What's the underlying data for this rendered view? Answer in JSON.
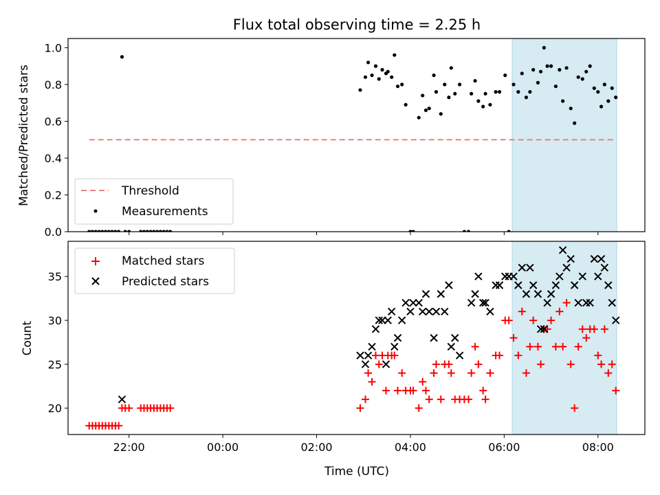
{
  "chart_data": [
    {
      "type": "scatter",
      "title": "Flux total observing time = 2.25 h",
      "ylabel": "Matched/Predicted stars",
      "xlabel": "",
      "xlim": [
        -3.3,
        9.0
      ],
      "ylim": [
        0.0,
        1.05
      ],
      "yticks": [
        "0.0",
        "0.2",
        "0.4",
        "0.6",
        "0.8",
        "1.0"
      ],
      "shaded_interval": [
        6.17,
        8.4
      ],
      "shade_color": "#add8e6",
      "grid": false,
      "legend_position": "lower-left",
      "threshold": {
        "name": "Threshold",
        "value": 0.5,
        "x_range": [
          -2.85,
          8.35
        ],
        "color": "#f08080"
      },
      "series": [
        {
          "name": "Measurements",
          "color": "#000000",
          "marker": "dot",
          "points": [
            [
              -2.85,
              0.0
            ],
            [
              -2.78,
              0.0
            ],
            [
              -2.71,
              0.0
            ],
            [
              -2.64,
              0.0
            ],
            [
              -2.57,
              0.0
            ],
            [
              -2.5,
              0.0
            ],
            [
              -2.43,
              0.0
            ],
            [
              -2.36,
              0.0
            ],
            [
              -2.29,
              0.0
            ],
            [
              -2.22,
              0.0
            ],
            [
              -2.15,
              0.95
            ],
            [
              -2.08,
              0.0
            ],
            [
              -2.0,
              0.0
            ],
            [
              -1.75,
              0.0
            ],
            [
              -1.68,
              0.0
            ],
            [
              -1.61,
              0.0
            ],
            [
              -1.54,
              0.0
            ],
            [
              -1.47,
              0.0
            ],
            [
              -1.4,
              0.0
            ],
            [
              -1.33,
              0.0
            ],
            [
              -1.26,
              0.0
            ],
            [
              -1.19,
              0.0
            ],
            [
              -1.12,
              0.0
            ],
            [
              2.93,
              0.77
            ],
            [
              3.04,
              0.84
            ],
            [
              3.1,
              0.92
            ],
            [
              3.18,
              0.85
            ],
            [
              3.26,
              0.9
            ],
            [
              3.33,
              0.83
            ],
            [
              3.4,
              0.88
            ],
            [
              3.48,
              0.86
            ],
            [
              3.52,
              0.87
            ],
            [
              3.6,
              0.84
            ],
            [
              3.66,
              0.96
            ],
            [
              3.73,
              0.79
            ],
            [
              3.82,
              0.8
            ],
            [
              3.9,
              0.69
            ],
            [
              4.0,
              0.0
            ],
            [
              4.06,
              0.0
            ],
            [
              4.18,
              0.62
            ],
            [
              4.26,
              0.74
            ],
            [
              4.33,
              0.66
            ],
            [
              4.4,
              0.67
            ],
            [
              4.5,
              0.85
            ],
            [
              4.55,
              0.76
            ],
            [
              4.65,
              0.64
            ],
            [
              4.73,
              0.8
            ],
            [
              4.82,
              0.73
            ],
            [
              4.87,
              0.89
            ],
            [
              4.95,
              0.75
            ],
            [
              5.05,
              0.8
            ],
            [
              5.15,
              0.0
            ],
            [
              5.24,
              0.0
            ],
            [
              5.3,
              0.75
            ],
            [
              5.38,
              0.82
            ],
            [
              5.45,
              0.71
            ],
            [
              5.55,
              0.68
            ],
            [
              5.6,
              0.75
            ],
            [
              5.7,
              0.69
            ],
            [
              5.82,
              0.76
            ],
            [
              5.9,
              0.76
            ],
            [
              6.02,
              0.85
            ],
            [
              6.1,
              0.0
            ],
            [
              6.2,
              0.8
            ],
            [
              6.3,
              0.76
            ],
            [
              6.38,
              0.86
            ],
            [
              6.47,
              0.73
            ],
            [
              6.55,
              0.76
            ],
            [
              6.62,
              0.88
            ],
            [
              6.72,
              0.81
            ],
            [
              6.78,
              0.87
            ],
            [
              6.85,
              1.0
            ],
            [
              6.92,
              0.9
            ],
            [
              7.0,
              0.9
            ],
            [
              7.1,
              0.79
            ],
            [
              7.18,
              0.88
            ],
            [
              7.25,
              0.71
            ],
            [
              7.33,
              0.89
            ],
            [
              7.42,
              0.67
            ],
            [
              7.5,
              0.59
            ],
            [
              7.58,
              0.84
            ],
            [
              7.67,
              0.83
            ],
            [
              7.75,
              0.87
            ],
            [
              7.83,
              0.9
            ],
            [
              7.92,
              0.78
            ],
            [
              8.0,
              0.76
            ],
            [
              8.07,
              0.68
            ],
            [
              8.14,
              0.8
            ],
            [
              8.22,
              0.71
            ],
            [
              8.3,
              0.78
            ],
            [
              8.38,
              0.73
            ]
          ]
        }
      ]
    },
    {
      "type": "scatter",
      "title": "",
      "ylabel": "Count",
      "xlabel": "Time (UTC)",
      "xlim": [
        -3.3,
        9.0
      ],
      "ylim": [
        17.0,
        39.0
      ],
      "xticks": [
        {
          "value": -2,
          "label": "22:00"
        },
        {
          "value": 0,
          "label": "00:00"
        },
        {
          "value": 2,
          "label": "02:00"
        },
        {
          "value": 4,
          "label": "04:00"
        },
        {
          "value": 6,
          "label": "06:00"
        },
        {
          "value": 8,
          "label": "08:00"
        }
      ],
      "yticks": [
        "20",
        "25",
        "30",
        "35"
      ],
      "shaded_interval": [
        6.17,
        8.4
      ],
      "shade_color": "#add8e6",
      "grid": false,
      "legend_position": "upper-left",
      "series": [
        {
          "name": "Matched stars",
          "color": "#ff0000",
          "marker": "plus",
          "points": [
            [
              -2.85,
              18
            ],
            [
              -2.78,
              18
            ],
            [
              -2.71,
              18
            ],
            [
              -2.64,
              18
            ],
            [
              -2.57,
              18
            ],
            [
              -2.5,
              18
            ],
            [
              -2.43,
              18
            ],
            [
              -2.36,
              18
            ],
            [
              -2.29,
              18
            ],
            [
              -2.22,
              18
            ],
            [
              -2.15,
              20
            ],
            [
              -2.08,
              20
            ],
            [
              -2.0,
              20
            ],
            [
              -1.75,
              20
            ],
            [
              -1.68,
              20
            ],
            [
              -1.61,
              20
            ],
            [
              -1.54,
              20
            ],
            [
              -1.47,
              20
            ],
            [
              -1.4,
              20
            ],
            [
              -1.33,
              20
            ],
            [
              -1.26,
              20
            ],
            [
              -1.19,
              20
            ],
            [
              -1.12,
              20
            ],
            [
              2.93,
              20
            ],
            [
              3.04,
              21
            ],
            [
              3.1,
              24
            ],
            [
              3.18,
              23
            ],
            [
              3.26,
              26
            ],
            [
              3.33,
              25
            ],
            [
              3.4,
              26
            ],
            [
              3.48,
              22
            ],
            [
              3.52,
              26
            ],
            [
              3.6,
              26
            ],
            [
              3.66,
              26
            ],
            [
              3.73,
              22
            ],
            [
              3.82,
              24
            ],
            [
              3.9,
              22
            ],
            [
              4.0,
              22
            ],
            [
              4.06,
              22
            ],
            [
              4.18,
              20
            ],
            [
              4.26,
              23
            ],
            [
              4.33,
              22
            ],
            [
              4.4,
              21
            ],
            [
              4.5,
              24
            ],
            [
              4.55,
              25
            ],
            [
              4.65,
              21
            ],
            [
              4.73,
              25
            ],
            [
              4.82,
              25
            ],
            [
              4.87,
              24
            ],
            [
              4.95,
              21
            ],
            [
              5.05,
              21
            ],
            [
              5.15,
              21
            ],
            [
              5.24,
              21
            ],
            [
              5.3,
              24
            ],
            [
              5.38,
              27
            ],
            [
              5.45,
              25
            ],
            [
              5.55,
              22
            ],
            [
              5.6,
              21
            ],
            [
              5.7,
              24
            ],
            [
              5.82,
              26
            ],
            [
              5.9,
              26
            ],
            [
              6.02,
              30
            ],
            [
              6.1,
              30
            ],
            [
              6.2,
              28
            ],
            [
              6.3,
              26
            ],
            [
              6.38,
              31
            ],
            [
              6.47,
              24
            ],
            [
              6.55,
              27
            ],
            [
              6.62,
              30
            ],
            [
              6.72,
              27
            ],
            [
              6.78,
              25
            ],
            [
              6.85,
              29
            ],
            [
              6.92,
              29
            ],
            [
              7.0,
              30
            ],
            [
              7.1,
              27
            ],
            [
              7.18,
              31
            ],
            [
              7.25,
              27
            ],
            [
              7.33,
              32
            ],
            [
              7.42,
              25
            ],
            [
              7.5,
              20
            ],
            [
              7.58,
              27
            ],
            [
              7.67,
              29
            ],
            [
              7.75,
              28
            ],
            [
              7.83,
              29
            ],
            [
              7.92,
              29
            ],
            [
              8.0,
              26
            ],
            [
              8.07,
              25
            ],
            [
              8.14,
              29
            ],
            [
              8.22,
              24
            ],
            [
              8.3,
              25
            ],
            [
              8.38,
              22
            ]
          ]
        },
        {
          "name": "Predicted stars",
          "color": "#000000",
          "marker": "x",
          "points": [
            [
              -2.15,
              21
            ],
            [
              2.93,
              26
            ],
            [
              3.04,
              25
            ],
            [
              3.1,
              26
            ],
            [
              3.18,
              27
            ],
            [
              3.26,
              29
            ],
            [
              3.33,
              30
            ],
            [
              3.4,
              30
            ],
            [
              3.48,
              25
            ],
            [
              3.52,
              30
            ],
            [
              3.6,
              31
            ],
            [
              3.66,
              27
            ],
            [
              3.73,
              28
            ],
            [
              3.82,
              30
            ],
            [
              3.9,
              32
            ],
            [
              4.0,
              31
            ],
            [
              4.06,
              32
            ],
            [
              4.18,
              32
            ],
            [
              4.26,
              31
            ],
            [
              4.33,
              33
            ],
            [
              4.4,
              31
            ],
            [
              4.5,
              28
            ],
            [
              4.55,
              31
            ],
            [
              4.65,
              33
            ],
            [
              4.73,
              31
            ],
            [
              4.82,
              34
            ],
            [
              4.87,
              27
            ],
            [
              4.95,
              28
            ],
            [
              5.05,
              26
            ],
            [
              5.3,
              32
            ],
            [
              5.38,
              33
            ],
            [
              5.45,
              35
            ],
            [
              5.55,
              32
            ],
            [
              5.6,
              32
            ],
            [
              5.7,
              31
            ],
            [
              5.82,
              34
            ],
            [
              5.9,
              34
            ],
            [
              6.02,
              35
            ],
            [
              6.1,
              35
            ],
            [
              6.2,
              35
            ],
            [
              6.3,
              34
            ],
            [
              6.38,
              36
            ],
            [
              6.47,
              33
            ],
            [
              6.55,
              36
            ],
            [
              6.62,
              34
            ],
            [
              6.72,
              33
            ],
            [
              6.78,
              29
            ],
            [
              6.85,
              29
            ],
            [
              6.92,
              32
            ],
            [
              7.0,
              33
            ],
            [
              7.1,
              34
            ],
            [
              7.18,
              35
            ],
            [
              7.25,
              38
            ],
            [
              7.33,
              36
            ],
            [
              7.42,
              37
            ],
            [
              7.5,
              34
            ],
            [
              7.58,
              32
            ],
            [
              7.67,
              35
            ],
            [
              7.75,
              32
            ],
            [
              7.83,
              32
            ],
            [
              7.92,
              37
            ],
            [
              8.0,
              35
            ],
            [
              8.07,
              37
            ],
            [
              8.14,
              36
            ],
            [
              8.22,
              34
            ],
            [
              8.3,
              32
            ],
            [
              8.38,
              30
            ]
          ]
        }
      ]
    }
  ]
}
